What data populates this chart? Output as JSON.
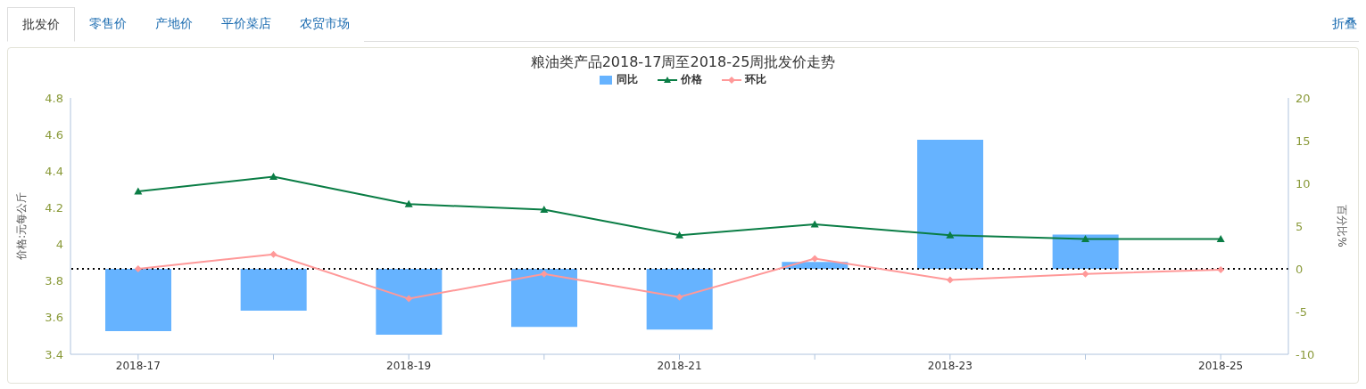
{
  "chart_data": {
    "type": "bar",
    "title": "粮油类产品2018-17周至2018-25周批发价走势",
    "annotations": [
      "批发价",
      "零售价",
      "产地价",
      "平价菜店",
      "农贸市场",
      "折叠"
    ],
    "categories": [
      "2018-17",
      null,
      "2018-19",
      null,
      "2018-21",
      null,
      "2018-23",
      null,
      "2018-25"
    ],
    "series": [
      {
        "name": "同比",
        "axis": "y2",
        "color": "#66b3ff",
        "values": [
          -7.3,
          -4.9,
          -7.7,
          -6.8,
          -7.1,
          0.8,
          15.1,
          4.0,
          null
        ]
      },
      {
        "name": "价格",
        "type": "line",
        "color": "#0a7d45",
        "marker": "triangle",
        "values": [
          4.29,
          4.37,
          4.22,
          4.19,
          4.05,
          4.11,
          4.05,
          4.03,
          4.03
        ]
      },
      {
        "name": "环比",
        "type": "line",
        "axis": "y2",
        "color": "#ff9999",
        "marker": "diamond",
        "values": [
          0,
          1.7,
          -3.5,
          -0.6,
          -3.3,
          1.2,
          -1.3,
          -0.6,
          -0.1
        ]
      }
    ],
    "ylabel": "价格:元每公斤",
    "y2label": "百分比%",
    "ylim": [
      3.4,
      4.8
    ],
    "yticks": [
      3.4,
      3.6,
      3.8,
      4,
      4.2,
      4.4,
      4.6,
      4.8
    ],
    "y2lim": [
      -10,
      20
    ],
    "y2ticks": [
      -10,
      -5,
      0,
      5,
      10,
      15,
      20
    ],
    "ref_lines": [
      {
        "axis": "y2",
        "value": 0,
        "color": "#000000",
        "line_style": "dotted"
      }
    ],
    "legend": "top",
    "grid": false
  }
}
